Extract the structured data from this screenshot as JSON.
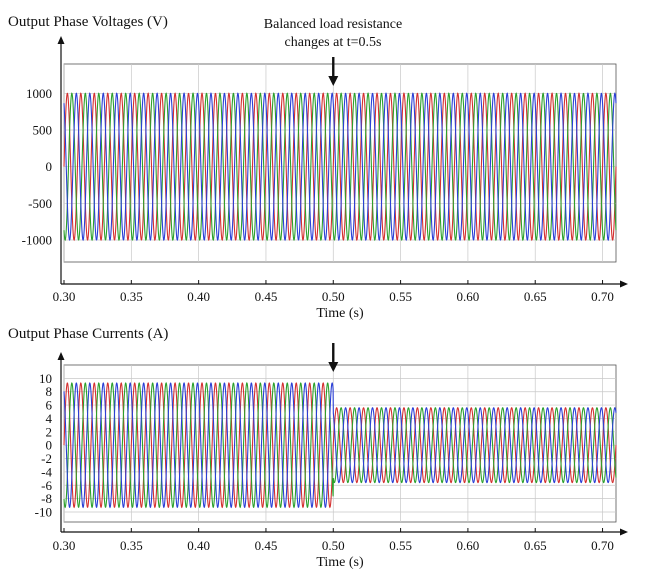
{
  "chart_data": [
    {
      "type": "line",
      "title": "Output Phase Voltages (V)",
      "xlabel": "Time (s)",
      "ylabel": "",
      "xlim": [
        0.3,
        0.71
      ],
      "ylim": [
        -1300,
        1400
      ],
      "x_ticks": [
        0.3,
        0.35,
        0.4,
        0.45,
        0.5,
        0.55,
        0.6,
        0.65,
        0.7
      ],
      "x_tick_labels": [
        "0.30",
        "0.35",
        "0.40",
        "0.45",
        "0.50",
        "0.55",
        "0.60",
        "0.65",
        "0.70"
      ],
      "y_ticks": [
        -1000,
        -500,
        0,
        500,
        1000
      ],
      "y_tick_labels": [
        "-1000",
        "-500",
        "0",
        "500",
        "1000"
      ],
      "grid": true,
      "waveform": {
        "frequency_hz": 100,
        "phase_shift_deg": 120
      },
      "series": [
        {
          "color": "#d43030",
          "amplitude_segments": [
            {
              "from": 0.3,
              "to": 0.71,
              "amplitude": 1000
            }
          ]
        },
        {
          "color": "#2ca02c",
          "amplitude_segments": [
            {
              "from": 0.3,
              "to": 0.71,
              "amplitude": 1000
            }
          ]
        },
        {
          "color": "#2a3fd6",
          "amplitude_segments": [
            {
              "from": 0.3,
              "to": 0.71,
              "amplitude": 1000
            }
          ]
        }
      ],
      "annotation": {
        "lines": [
          "Balanced load resistance",
          "changes at t=0.5s"
        ],
        "x": 0.5
      }
    },
    {
      "type": "line",
      "title": "Output Phase Currents (A)",
      "xlabel": "Time (s)",
      "ylabel": "",
      "xlim": [
        0.3,
        0.71
      ],
      "ylim": [
        -11.5,
        12
      ],
      "x_ticks": [
        0.3,
        0.35,
        0.4,
        0.45,
        0.5,
        0.55,
        0.6,
        0.65,
        0.7
      ],
      "x_tick_labels": [
        "0.30",
        "0.35",
        "0.40",
        "0.45",
        "0.50",
        "0.55",
        "0.60",
        "0.65",
        "0.70"
      ],
      "y_ticks": [
        -10,
        -8,
        -6,
        -4,
        -2,
        0,
        2,
        4,
        6,
        8,
        10
      ],
      "y_tick_labels": [
        "-10",
        "-8",
        "-6",
        "-4",
        "-2",
        "0",
        "2",
        "4",
        "6",
        "8",
        "10"
      ],
      "grid": true,
      "waveform": {
        "frequency_hz": 100,
        "phase_shift_deg": 120
      },
      "series": [
        {
          "color": "#d43030",
          "amplitude_segments": [
            {
              "from": 0.3,
              "to": 0.5,
              "amplitude": 9.3
            },
            {
              "from": 0.5,
              "to": 0.71,
              "amplitude": 5.6
            }
          ]
        },
        {
          "color": "#2ca02c",
          "amplitude_segments": [
            {
              "from": 0.3,
              "to": 0.5,
              "amplitude": 9.3
            },
            {
              "from": 0.5,
              "to": 0.71,
              "amplitude": 5.6
            }
          ]
        },
        {
          "color": "#2a3fd6",
          "amplitude_segments": [
            {
              "from": 0.3,
              "to": 0.5,
              "amplitude": 9.3
            },
            {
              "from": 0.5,
              "to": 0.71,
              "amplitude": 5.6
            }
          ]
        }
      ],
      "annotation": {
        "lines": [],
        "x": 0.5
      }
    }
  ]
}
